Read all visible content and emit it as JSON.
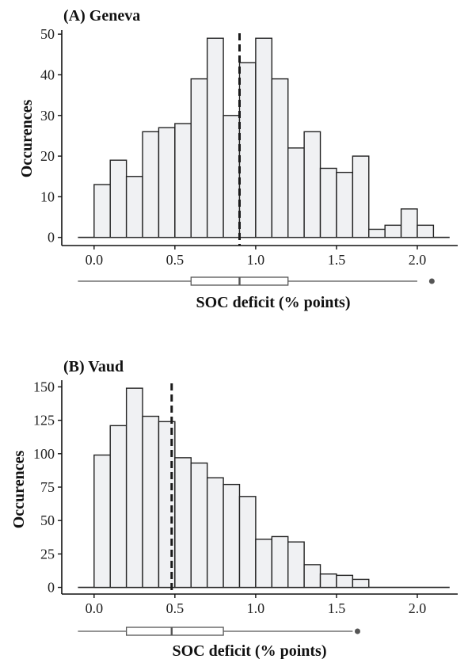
{
  "chart_data": [
    {
      "type": "bar",
      "title": "(A) Geneva",
      "xlabel": "SOC deficit (% points)",
      "ylabel": "Occurences",
      "x_ticks": [
        "0.0",
        "0.5",
        "1.0",
        "1.5",
        "2.0"
      ],
      "y_ticks": [
        "0",
        "10",
        "20",
        "30",
        "40",
        "50"
      ],
      "xlim": [
        -0.2,
        2.25
      ],
      "ylim": [
        -2,
        51
      ],
      "bin_width": 0.1,
      "bin_starts": [
        0.0,
        0.1,
        0.2,
        0.3,
        0.4,
        0.5,
        0.6,
        0.7,
        0.8,
        0.9,
        1.0,
        1.1,
        1.2,
        1.3,
        1.4,
        1.5,
        1.6,
        1.7,
        1.8,
        1.9,
        2.0
      ],
      "values": [
        13,
        19,
        15,
        26,
        27,
        28,
        39,
        49,
        30,
        43,
        49,
        39,
        22,
        26,
        17,
        16,
        20,
        2,
        3,
        7,
        3
      ],
      "mean_line": 0.9,
      "boxplot": {
        "whisker_low": -0.1,
        "q1": 0.6,
        "median": 0.9,
        "q3": 1.2,
        "whisker_high": 2.0,
        "outliers": [
          2.09
        ]
      },
      "grid": false,
      "colors": {
        "bar_fill": "#f0f1f3",
        "bar_stroke": "#222222",
        "mean_line": "#1a1a1a",
        "axis": "#111111",
        "boxplot": "#555555"
      }
    },
    {
      "type": "bar",
      "title": "(B) Vaud",
      "xlabel": "SOC deficit (% points)",
      "ylabel": "Occurences",
      "x_ticks": [
        "0.0",
        "0.5",
        "1.0",
        "1.5",
        "2.0"
      ],
      "y_ticks": [
        "0",
        "25",
        "50",
        "75",
        "100",
        "125",
        "150"
      ],
      "xlim": [
        -0.2,
        2.25
      ],
      "ylim": [
        -5,
        155
      ],
      "bin_width": 0.1,
      "bin_starts": [
        0.0,
        0.1,
        0.2,
        0.3,
        0.4,
        0.5,
        0.6,
        0.7,
        0.8,
        0.9,
        1.0,
        1.1,
        1.2,
        1.3,
        1.4,
        1.5,
        1.6,
        1.7,
        1.8,
        1.9,
        2.0,
        2.1
      ],
      "values": [
        99,
        121,
        149,
        128,
        124,
        97,
        93,
        82,
        77,
        68,
        36,
        38,
        34,
        17,
        10,
        9,
        6,
        0,
        0,
        0,
        0,
        0
      ],
      "mean_line": 0.48,
      "boxplot": {
        "whisker_low": -0.1,
        "q1": 0.2,
        "median": 0.48,
        "q3": 0.8,
        "whisker_high": 1.6,
        "outliers": [
          1.63
        ]
      },
      "grid": false,
      "colors": {
        "bar_fill": "#f0f1f3",
        "bar_stroke": "#222222",
        "mean_line": "#1a1a1a",
        "axis": "#111111",
        "boxplot": "#555555"
      }
    }
  ]
}
